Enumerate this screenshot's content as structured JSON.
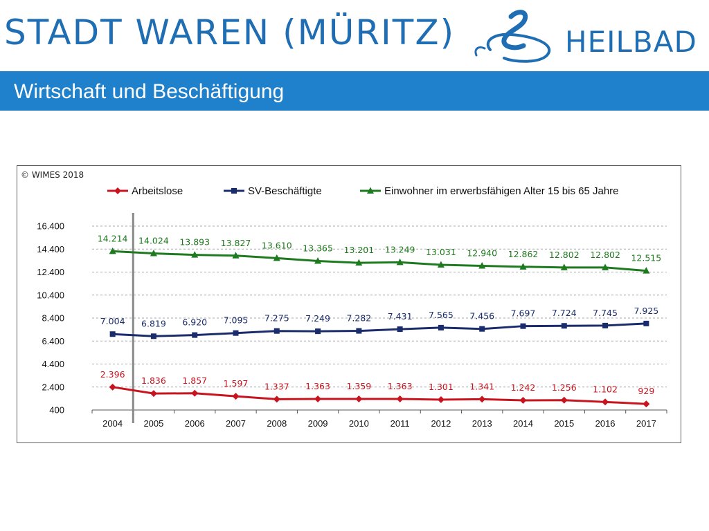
{
  "header": {
    "brand_name": "STADT WAREN (MÜRITZ)",
    "brand_suffix": "HEILBAD",
    "logo_icon": "heilbad-logo-icon",
    "brand_color": "#1f6eb3"
  },
  "slide": {
    "title": "Wirtschaft und Beschäftigung",
    "title_bar_color": "#1f80cc"
  },
  "chart_data": {
    "type": "line",
    "copyright": "© WIMES 2018",
    "categories": [
      "2004",
      "2005",
      "2006",
      "2007",
      "2008",
      "2009",
      "2010",
      "2011",
      "2012",
      "2013",
      "2014",
      "2015",
      "2016",
      "2017"
    ],
    "ylim": [
      400,
      16400
    ],
    "y_ticks": [
      400,
      2400,
      4400,
      6400,
      8400,
      10400,
      12400,
      14400,
      16400
    ],
    "y_tick_labels": [
      "400",
      "2.400",
      "4.400",
      "6.400",
      "8.400",
      "10.400",
      "12.400",
      "14.400",
      "16.400"
    ],
    "grid": true,
    "legend_position": "top",
    "series": [
      {
        "name": "Arbeitslose",
        "color": "#c8141e",
        "marker": "diamond",
        "values": [
          2396,
          1836,
          1857,
          1597,
          1337,
          1363,
          1359,
          1363,
          1301,
          1341,
          1242,
          1256,
          1102,
          929
        ],
        "labels": [
          "2.396",
          "1.836",
          "1.857",
          "1.597",
          "1.337",
          "1.363",
          "1.359",
          "1.363",
          "1.301",
          "1.341",
          "1.242",
          "1.256",
          "1.102",
          "929"
        ]
      },
      {
        "name": "SV-Beschäftigte",
        "color": "#1a2c6b",
        "marker": "square",
        "values": [
          7004,
          6819,
          6920,
          7095,
          7275,
          7249,
          7282,
          7431,
          7565,
          7456,
          7697,
          7724,
          7745,
          7925
        ],
        "labels": [
          "7.004",
          "6.819",
          "6.920",
          "7.095",
          "7.275",
          "7.249",
          "7.282",
          "7.431",
          "7.565",
          "7.456",
          "7.697",
          "7.724",
          "7.745",
          "7.925"
        ]
      },
      {
        "name": "Einwohner im erwerbsfähigen Alter 15 bis 65 Jahre",
        "color": "#1e7a1e",
        "marker": "triangle",
        "values": [
          14214,
          14024,
          13893,
          13827,
          13610,
          13365,
          13201,
          13249,
          13031,
          12940,
          12862,
          12802,
          12802,
          12515
        ],
        "labels": [
          "14.214",
          "14.024",
          "13.893",
          "13.827",
          "13.610",
          "13.365",
          "13.201",
          "13.249",
          "13.031",
          "12.940",
          "12.862",
          "12.802",
          "12.802",
          "12.515"
        ]
      }
    ],
    "reference_line_after_category": "2004"
  }
}
